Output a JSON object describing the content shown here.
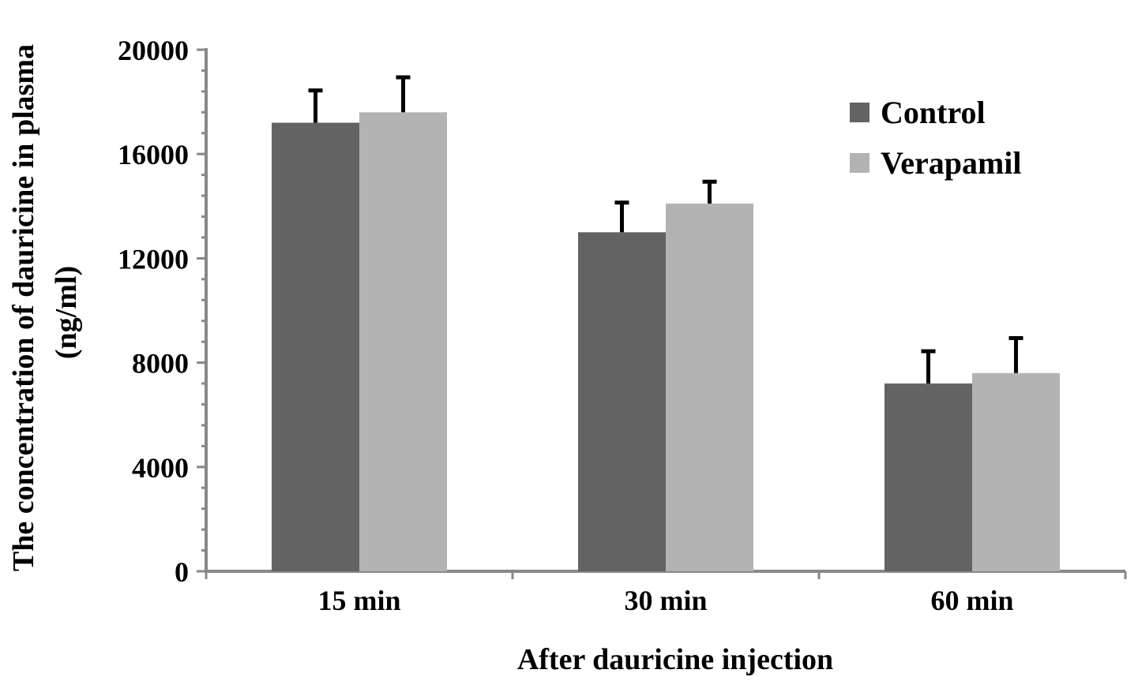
{
  "chart_data": {
    "type": "bar",
    "title": "",
    "xlabel": "After dauricine injection",
    "ylabel_lines": [
      "The concentration of dauricine in plasma",
      "(ng/ml)"
    ],
    "categories": [
      "15 min",
      "30 min",
      "60 min"
    ],
    "series": [
      {
        "name": "Control",
        "values": [
          17200,
          13000,
          7200
        ],
        "error_upper": [
          18500,
          14200,
          8500
        ],
        "color": "#636363"
      },
      {
        "name": "Verapamil",
        "values": [
          17600,
          14100,
          7600
        ],
        "error_upper": [
          19000,
          15000,
          9000
        ],
        "color": "#b3b3b3"
      }
    ],
    "ylim": [
      0,
      20000
    ],
    "yticks": [
      0,
      4000,
      8000,
      12000,
      16000,
      20000
    ],
    "yminor_step": 800,
    "grid": false,
    "legend_position": "top-right",
    "axis_color": "#888888"
  }
}
